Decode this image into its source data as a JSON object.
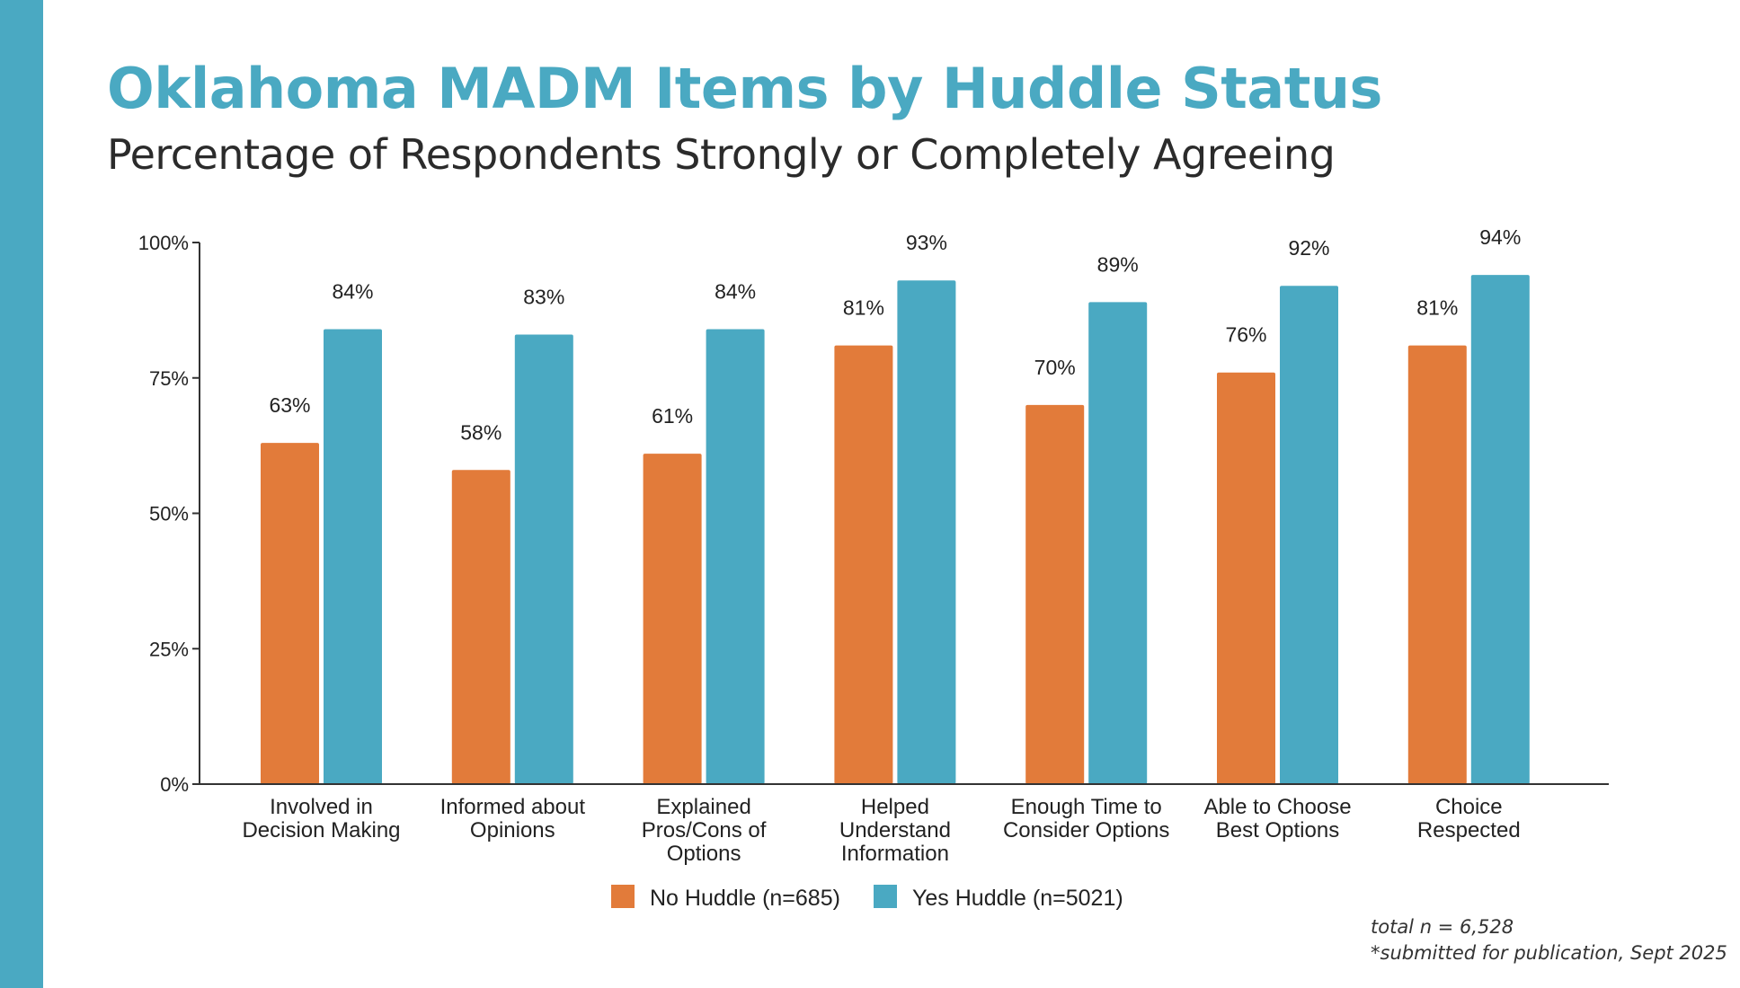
{
  "header": {
    "title": "Oklahoma MADM Items by Huddle Status",
    "subtitle": "Percentage of Respondents Strongly or Completely Agreeing"
  },
  "colors": {
    "accent": "#4aa9c2",
    "no_huddle": "#e27b3a",
    "yes_huddle": "#4aa9c2"
  },
  "chart_data": {
    "type": "bar",
    "categories": [
      [
        "Involved in",
        "Decision Making"
      ],
      [
        "Informed about",
        "Opinions"
      ],
      [
        "Explained",
        "Pros/Cons of",
        "Options"
      ],
      [
        "Helped",
        "Understand",
        "Information"
      ],
      [
        "Enough Time to",
        "Consider Options"
      ],
      [
        "Able to Choose",
        "Best Options"
      ],
      [
        "Choice",
        "Respected"
      ]
    ],
    "series": [
      {
        "name": "No Huddle (n=685)",
        "color": "#e27b3a",
        "values": [
          63,
          58,
          61,
          81,
          70,
          76,
          81
        ]
      },
      {
        "name": "Yes Huddle (n=5021)",
        "color": "#4aa9c2",
        "values": [
          84,
          83,
          84,
          93,
          89,
          92,
          94
        ]
      }
    ],
    "value_suffix": "%",
    "ylim": [
      0,
      100
    ],
    "yticks": [
      0,
      25,
      50,
      75,
      100
    ],
    "ytick_labels": [
      "0%",
      "25%",
      "50%",
      "75%",
      "100%"
    ],
    "grid": false,
    "legend": "bottom"
  },
  "notes": {
    "total": "total n = 6,528",
    "publication": "*submitted for publication, Sept 2025"
  }
}
